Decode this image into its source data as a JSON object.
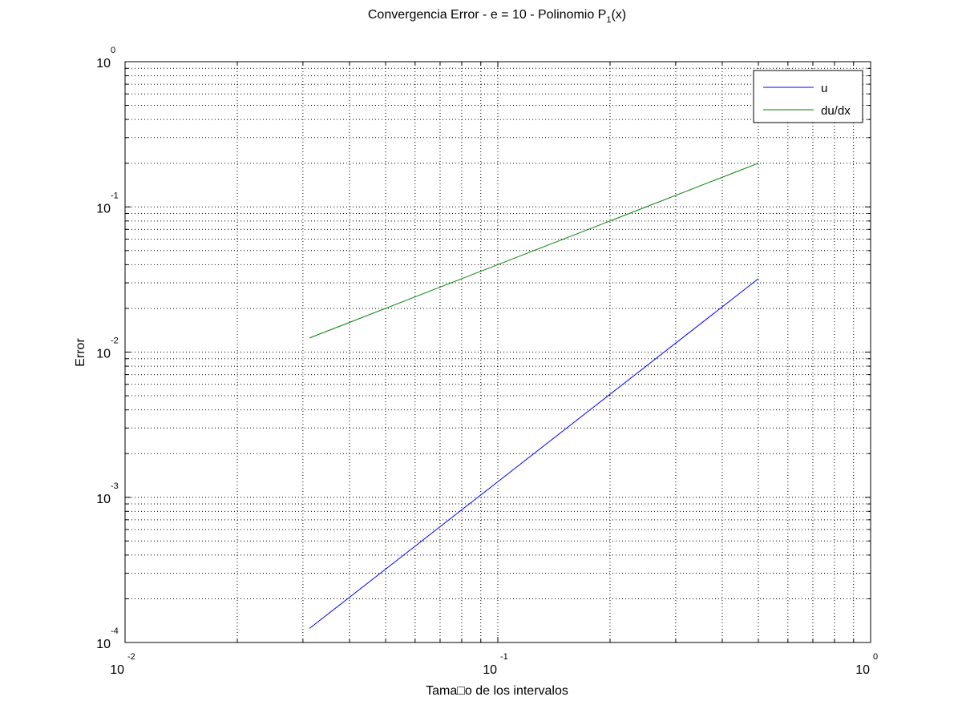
{
  "chart_data": {
    "type": "line",
    "title": "Convergencia Error - e = 10 - Polinomio P",
    "title_subscript": "1",
    "title_suffix": "(x)",
    "xlabel": "Tama□o de los intervalos",
    "ylabel": "Error",
    "x_scale": "log",
    "y_scale": "log",
    "xlim": [
      0.01,
      1
    ],
    "ylim": [
      0.0001,
      1
    ],
    "grid": true,
    "legend_position": "top-right",
    "x_ticks": [
      {
        "value": 0.01,
        "base": "10",
        "exp": "-2"
      },
      {
        "value": 0.1,
        "base": "10",
        "exp": "-1"
      },
      {
        "value": 1,
        "base": "10",
        "exp": "0"
      }
    ],
    "y_ticks": [
      {
        "value": 1,
        "base": "10",
        "exp": "0"
      },
      {
        "value": 0.1,
        "base": "10",
        "exp": "-1"
      },
      {
        "value": 0.01,
        "base": "10",
        "exp": "-2"
      },
      {
        "value": 0.001,
        "base": "10",
        "exp": "-3"
      },
      {
        "value": 0.0001,
        "base": "10",
        "exp": "-4"
      }
    ],
    "series": [
      {
        "name": "u",
        "color": "#0000ff",
        "x": [
          0.03125,
          0.5
        ],
        "y": [
          0.000125,
          0.032
        ]
      },
      {
        "name": "du/dx",
        "color": "#008000",
        "x": [
          0.03125,
          0.5
        ],
        "y": [
          0.0125,
          0.2
        ]
      }
    ]
  }
}
